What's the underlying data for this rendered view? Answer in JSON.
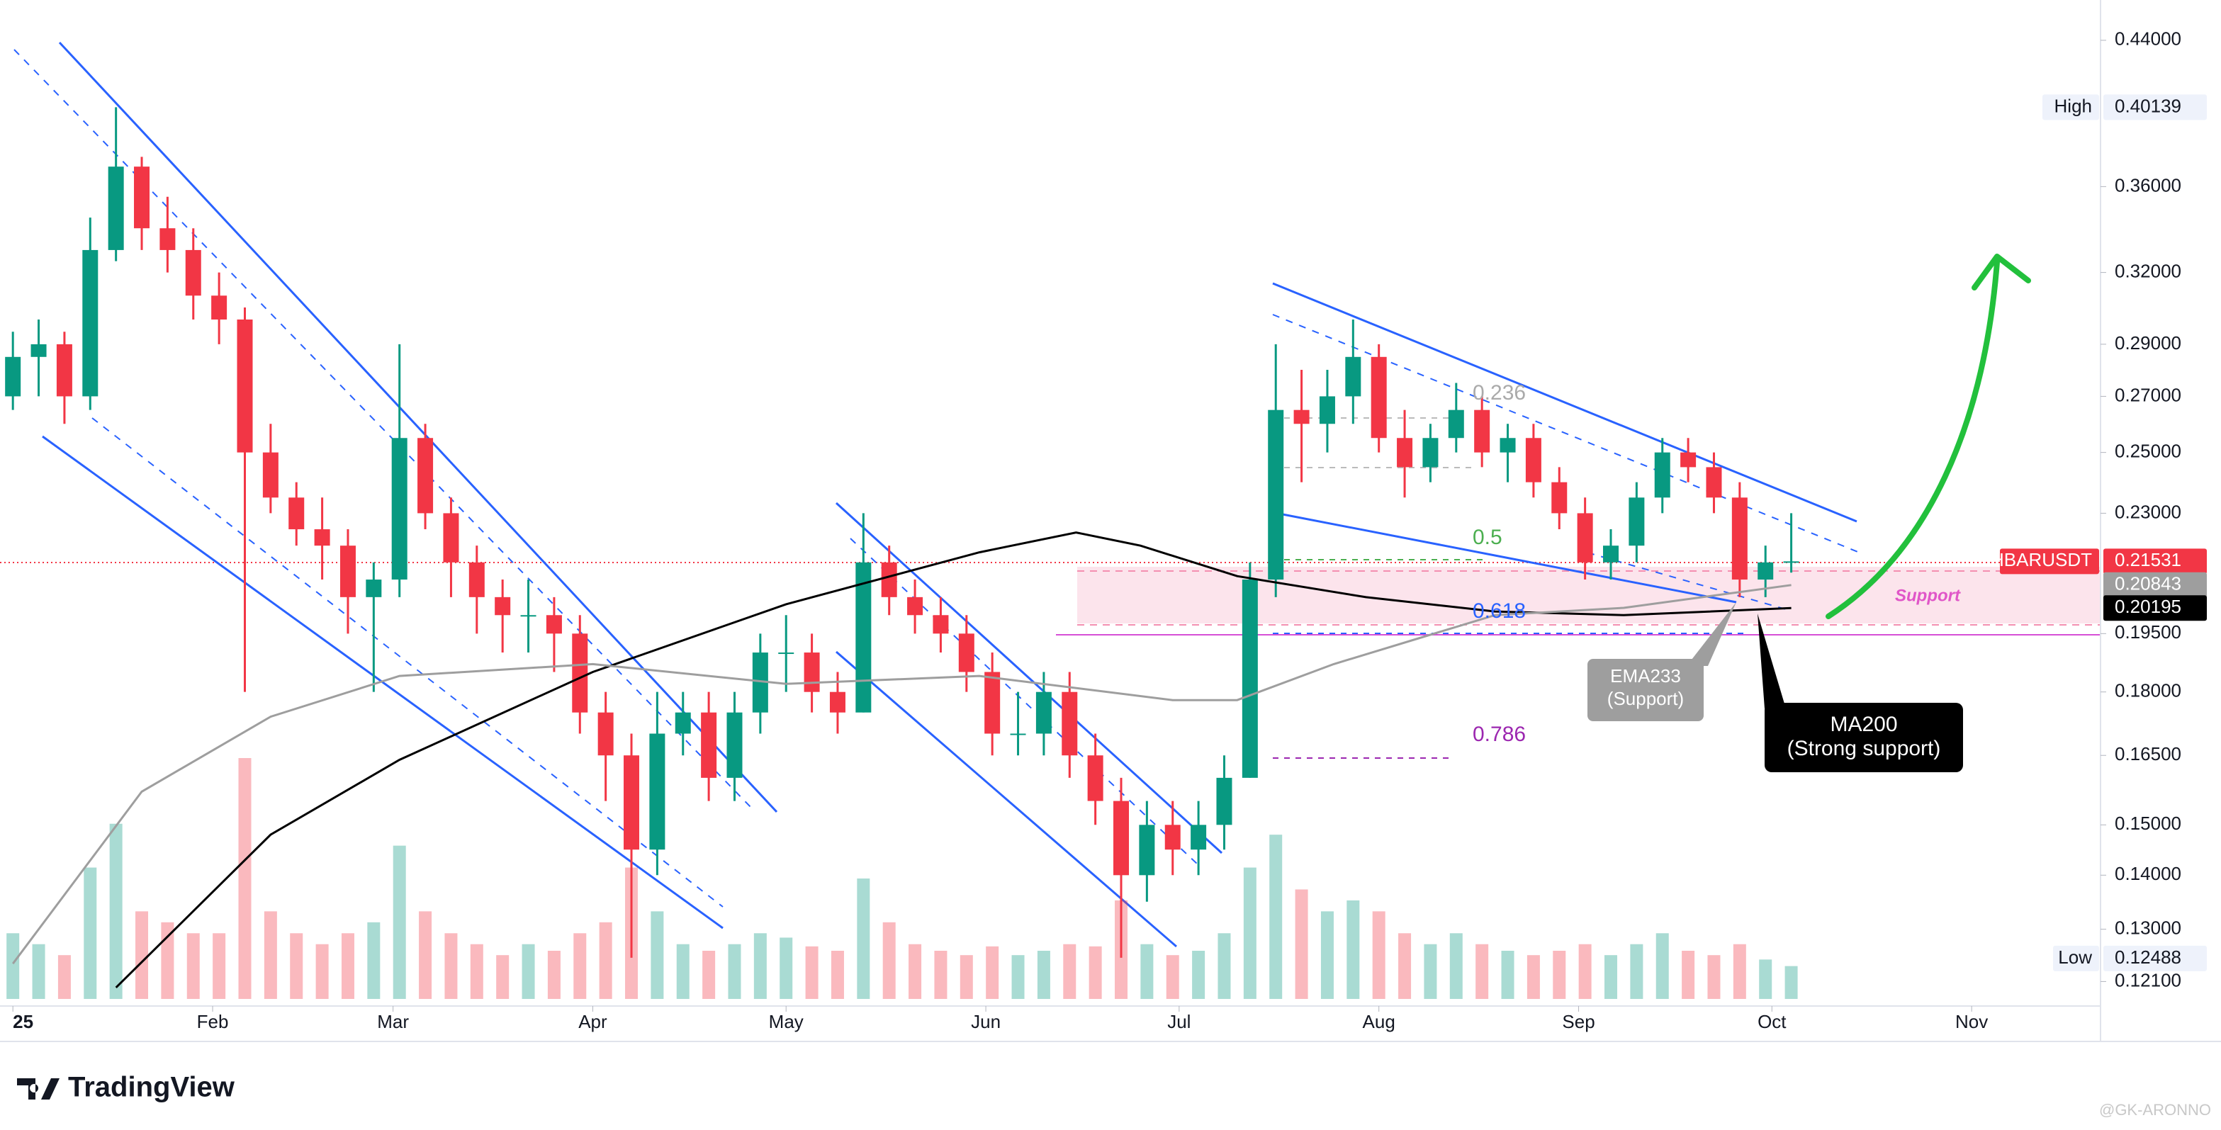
{
  "chart_data": {
    "type": "candlestick",
    "log_scale": true,
    "grid": false,
    "up_color": "#089981",
    "down_color": "#f23645",
    "xlim": [
      -2,
      324
    ],
    "ylim": [
      0.117,
      0.465
    ],
    "xticks": [
      {
        "value": 0,
        "label": "25"
      },
      {
        "value": 31,
        "label": "Feb"
      },
      {
        "value": 59,
        "label": "Mar"
      },
      {
        "value": 90,
        "label": "Apr"
      },
      {
        "value": 120,
        "label": "May"
      },
      {
        "value": 151,
        "label": "Jun"
      },
      {
        "value": 181,
        "label": "Jul"
      },
      {
        "value": 212,
        "label": "Aug"
      },
      {
        "value": 243,
        "label": "Sep"
      },
      {
        "value": 273,
        "label": "Oct"
      },
      {
        "value": 304,
        "label": "Nov"
      }
    ],
    "yticks": [
      {
        "value": 0.44,
        "label": "0.44000"
      },
      {
        "value": 0.36,
        "label": "0.36000"
      },
      {
        "value": 0.32,
        "label": "0.32000"
      },
      {
        "value": 0.29,
        "label": "0.29000"
      },
      {
        "value": 0.27,
        "label": "0.27000"
      },
      {
        "value": 0.25,
        "label": "0.25000"
      },
      {
        "value": 0.23,
        "label": "0.23000"
      },
      {
        "value": 0.195,
        "label": "0.19500"
      },
      {
        "value": 0.18,
        "label": "0.18000"
      },
      {
        "value": 0.165,
        "label": "0.16500"
      },
      {
        "value": 0.15,
        "label": "0.15000"
      },
      {
        "value": 0.14,
        "label": "0.14000"
      },
      {
        "value": 0.13,
        "label": "0.13000"
      },
      {
        "value": 0.121,
        "label": "0.12100"
      }
    ],
    "x": [
      0,
      4,
      8,
      12,
      16,
      20,
      24,
      28,
      32,
      36,
      40,
      44,
      48,
      52,
      56,
      60,
      64,
      68,
      72,
      76,
      80,
      84,
      88,
      92,
      96,
      100,
      104,
      108,
      112,
      116,
      120,
      124,
      128,
      132,
      136,
      140,
      144,
      148,
      152,
      156,
      160,
      164,
      168,
      172,
      176,
      180,
      184,
      188,
      192,
      196,
      200,
      204,
      208,
      212,
      216,
      220,
      224,
      228,
      232,
      236,
      240,
      244,
      248,
      252,
      256,
      260,
      264,
      268,
      272,
      276
    ],
    "candles": [
      [
        0.27,
        0.295,
        0.265,
        0.285
      ],
      [
        0.285,
        0.3,
        0.27,
        0.29
      ],
      [
        0.29,
        0.295,
        0.26,
        0.27
      ],
      [
        0.27,
        0.345,
        0.265,
        0.33
      ],
      [
        0.33,
        0.40139,
        0.325,
        0.37
      ],
      [
        0.37,
        0.375,
        0.33,
        0.34
      ],
      [
        0.34,
        0.355,
        0.32,
        0.33
      ],
      [
        0.33,
        0.34,
        0.3,
        0.31
      ],
      [
        0.31,
        0.32,
        0.29,
        0.3
      ],
      [
        0.3,
        0.305,
        0.18,
        0.25
      ],
      [
        0.25,
        0.26,
        0.23,
        0.235
      ],
      [
        0.235,
        0.24,
        0.22,
        0.225
      ],
      [
        0.225,
        0.235,
        0.21,
        0.22
      ],
      [
        0.22,
        0.225,
        0.195,
        0.205
      ],
      [
        0.205,
        0.215,
        0.18,
        0.21
      ],
      [
        0.21,
        0.29,
        0.205,
        0.255
      ],
      [
        0.255,
        0.26,
        0.225,
        0.23
      ],
      [
        0.23,
        0.235,
        0.205,
        0.215
      ],
      [
        0.215,
        0.22,
        0.195,
        0.205
      ],
      [
        0.205,
        0.21,
        0.19,
        0.2
      ],
      [
        0.2,
        0.21,
        0.19,
        0.2
      ],
      [
        0.2,
        0.205,
        0.185,
        0.195
      ],
      [
        0.195,
        0.2,
        0.17,
        0.175
      ],
      [
        0.175,
        0.18,
        0.155,
        0.165
      ],
      [
        0.165,
        0.17,
        0.125,
        0.145
      ],
      [
        0.145,
        0.18,
        0.14,
        0.17
      ],
      [
        0.17,
        0.18,
        0.165,
        0.175
      ],
      [
        0.175,
        0.18,
        0.155,
        0.16
      ],
      [
        0.16,
        0.18,
        0.155,
        0.175
      ],
      [
        0.175,
        0.195,
        0.17,
        0.19
      ],
      [
        0.19,
        0.2,
        0.18,
        0.19
      ],
      [
        0.19,
        0.195,
        0.175,
        0.18
      ],
      [
        0.18,
        0.185,
        0.17,
        0.175
      ],
      [
        0.175,
        0.23,
        0.175,
        0.215
      ],
      [
        0.215,
        0.22,
        0.2,
        0.205
      ],
      [
        0.205,
        0.21,
        0.195,
        0.2
      ],
      [
        0.2,
        0.205,
        0.19,
        0.195
      ],
      [
        0.195,
        0.2,
        0.18,
        0.185
      ],
      [
        0.185,
        0.19,
        0.165,
        0.17
      ],
      [
        0.17,
        0.18,
        0.165,
        0.17
      ],
      [
        0.17,
        0.185,
        0.165,
        0.18
      ],
      [
        0.18,
        0.185,
        0.16,
        0.165
      ],
      [
        0.165,
        0.17,
        0.15,
        0.155
      ],
      [
        0.155,
        0.16,
        0.125,
        0.14
      ],
      [
        0.14,
        0.155,
        0.135,
        0.15
      ],
      [
        0.15,
        0.155,
        0.14,
        0.145
      ],
      [
        0.145,
        0.155,
        0.14,
        0.15
      ],
      [
        0.15,
        0.165,
        0.145,
        0.16
      ],
      [
        0.16,
        0.215,
        0.16,
        0.21
      ],
      [
        0.21,
        0.29,
        0.205,
        0.265
      ],
      [
        0.265,
        0.28,
        0.24,
        0.26
      ],
      [
        0.26,
        0.28,
        0.25,
        0.27
      ],
      [
        0.27,
        0.3,
        0.26,
        0.285
      ],
      [
        0.285,
        0.29,
        0.25,
        0.255
      ],
      [
        0.255,
        0.265,
        0.235,
        0.245
      ],
      [
        0.245,
        0.26,
        0.24,
        0.255
      ],
      [
        0.255,
        0.275,
        0.25,
        0.265
      ],
      [
        0.265,
        0.27,
        0.245,
        0.25
      ],
      [
        0.25,
        0.26,
        0.24,
        0.255
      ],
      [
        0.255,
        0.26,
        0.235,
        0.24
      ],
      [
        0.24,
        0.245,
        0.225,
        0.23
      ],
      [
        0.23,
        0.235,
        0.21,
        0.215
      ],
      [
        0.215,
        0.225,
        0.21,
        0.22
      ],
      [
        0.22,
        0.24,
        0.215,
        0.235
      ],
      [
        0.235,
        0.255,
        0.23,
        0.25
      ],
      [
        0.25,
        0.255,
        0.24,
        0.245
      ],
      [
        0.245,
        0.25,
        0.23,
        0.235
      ],
      [
        0.235,
        0.24,
        0.205,
        0.21
      ],
      [
        0.21,
        0.22,
        0.205,
        0.215
      ],
      [
        0.215,
        0.23,
        0.212,
        0.21531
      ]
    ],
    "volume": [
      30,
      25,
      20,
      60,
      80,
      40,
      35,
      30,
      30,
      110,
      40,
      30,
      25,
      30,
      35,
      70,
      40,
      30,
      25,
      20,
      25,
      22,
      30,
      35,
      60,
      40,
      25,
      22,
      25,
      30,
      28,
      24,
      22,
      55,
      35,
      25,
      22,
      20,
      24,
      20,
      22,
      25,
      24,
      45,
      25,
      20,
      22,
      30,
      60,
      75,
      50,
      40,
      45,
      40,
      30,
      25,
      30,
      25,
      22,
      20,
      22,
      25,
      20,
      25,
      30,
      22,
      20,
      25,
      18,
      15
    ],
    "series": [
      {
        "color": "#000000",
        "x": [
          16,
          40,
          60,
          90,
          120,
          150,
          165,
          175,
          190,
          210,
          230,
          250,
          276
        ],
        "values": [
          0.12,
          0.148,
          0.164,
          0.185,
          0.203,
          0.218,
          0.224,
          0.22,
          0.211,
          0.205,
          0.201,
          0.2,
          0.20195
        ]
      },
      {
        "color": "#9e9e9e",
        "x": [
          0,
          20,
          40,
          60,
          90,
          120,
          150,
          180,
          190,
          205,
          230,
          250,
          276
        ],
        "values": [
          0.124,
          0.157,
          0.174,
          0.184,
          0.187,
          0.182,
          0.184,
          0.178,
          0.178,
          0.187,
          0.2,
          0.202,
          0.20843
        ]
      }
    ],
    "axis_labels": [
      {
        "name": "High",
        "value": 0.40139,
        "label": "0.40139",
        "color": "#ffffff"
      },
      {
        "name": "HBARUSDT",
        "value": 0.21531,
        "label": "0.21531",
        "color": "#f23645"
      },
      {
        "value": 0.20843,
        "label": "0.20843",
        "color": "#9e9e9e"
      },
      {
        "value": 0.20195,
        "label": "0.20195",
        "color": "#000000"
      },
      {
        "name": "Low",
        "value": 0.12488,
        "label": "0.12488",
        "color": "#ffffff"
      }
    ],
    "fib_labels": [
      "0.236",
      "0.5",
      "0.618",
      "0.786"
    ],
    "support_label": "Support",
    "ema_note": [
      "EMA233",
      "(Support)"
    ],
    "ma_note": [
      "MA200",
      "(Strong support)"
    ],
    "brand": "TradingView",
    "watermark": "@GK-ARONNO"
  }
}
